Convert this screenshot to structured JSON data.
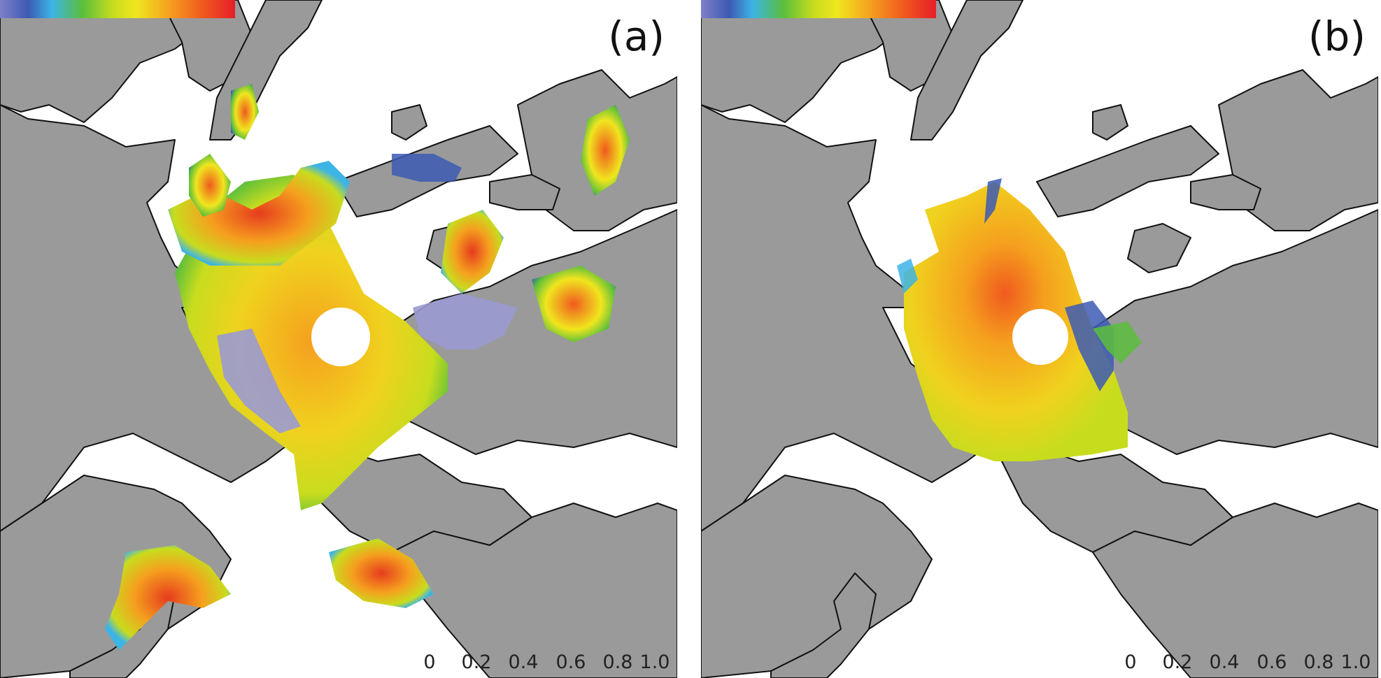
{
  "panels": [
    {
      "label": "(a)"
    },
    {
      "label": "(b)"
    }
  ],
  "colorbar": {
    "ticks": [
      "0",
      "0.2",
      "0.4",
      "0.6",
      "0.8",
      "1.0"
    ],
    "range": [
      0,
      1.0
    ],
    "stops": [
      "#7f7fc8",
      "#3c5ab4",
      "#3cb4e6",
      "#5abe3c",
      "#c8dc1e",
      "#f0e61e",
      "#f5a01e",
      "#f05a1e",
      "#e61e28"
    ]
  },
  "colors": {
    "land": "#9a9a9a",
    "ocean": "#ffffff",
    "coast": "#111111"
  }
}
